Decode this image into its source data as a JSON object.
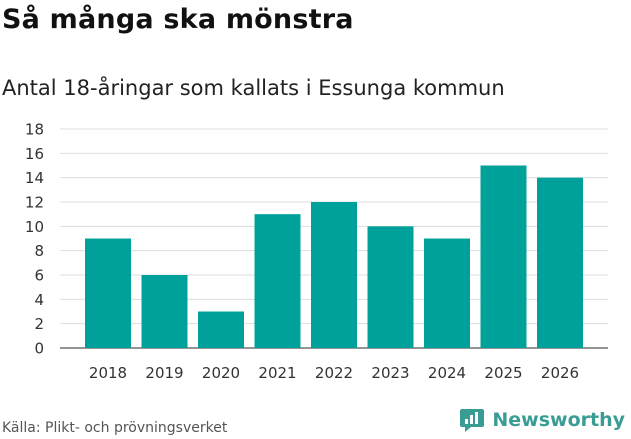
{
  "header": {
    "title": "Så många ska mönstra",
    "subtitle": "Antal 18-åringar som kallats i Essunga kommun"
  },
  "footer": {
    "source": "Källa: Plikt- och prövningsverket",
    "brand": "Newsworthy",
    "brand_icon": "bar-chart-logo-icon"
  },
  "colors": {
    "bar": "#00a19a",
    "brand": "#3a9d95",
    "grid": "#dddddd"
  },
  "chart_data": {
    "type": "bar",
    "title": "Så många ska mönstra",
    "subtitle": "Antal 18-åringar som kallats i Essunga kommun",
    "categories": [
      "2018",
      "2019",
      "2020",
      "2021",
      "2022",
      "2023",
      "2024",
      "2025",
      "2026"
    ],
    "values": [
      9,
      6,
      3,
      11,
      12,
      10,
      9,
      15,
      14
    ],
    "xlabel": "",
    "ylabel": "",
    "ylim": [
      0,
      18
    ],
    "yticks": [
      0,
      2,
      4,
      6,
      8,
      10,
      12,
      14,
      16,
      18
    ],
    "grid": true
  }
}
